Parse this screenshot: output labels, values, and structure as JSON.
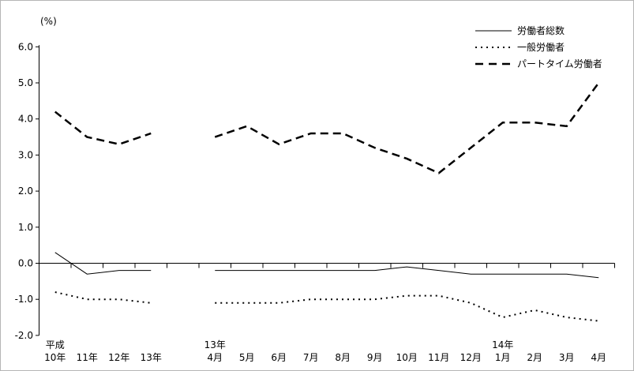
{
  "unit_label": "(%)",
  "chart_data": {
    "type": "line",
    "title": "",
    "xlabel": "",
    "ylabel": "(%)",
    "ylim": [
      -2.0,
      6.0
    ],
    "ytick_step": 1.0,
    "ytick_labels": [
      "6.0",
      "5.0",
      "4.0",
      "3.0",
      "2.0",
      "1.0",
      "0.0",
      "-1.0",
      "-2.0"
    ],
    "grid": false,
    "legend_position": "top-right",
    "line_color": "#000000",
    "categories": [
      "平成10年",
      "平成11年",
      "平成12年",
      "平成13年",
      "",
      "平成13年4月",
      "5月",
      "6月",
      "7月",
      "8月",
      "9月",
      "10月",
      "11月",
      "12月",
      "平成14年1月",
      "2月",
      "3月",
      "4月"
    ],
    "x_labels_top": [
      "平成",
      "",
      "",
      "",
      "",
      "13年",
      "",
      "",
      "",
      "",
      "",
      "",
      "",
      "",
      "14年",
      "",
      "",
      ""
    ],
    "x_labels_bottom": [
      "10年",
      "11年",
      "12年",
      "13年",
      "",
      "4月",
      "5月",
      "6月",
      "7月",
      "8月",
      "9月",
      "10月",
      "11月",
      "12月",
      "1月",
      "2月",
      "3月",
      "4月"
    ],
    "series": [
      {
        "name": "労働者総数",
        "style": "solid",
        "color": "#000000",
        "values": [
          0.3,
          -0.3,
          -0.2,
          -0.2,
          null,
          -0.2,
          -0.2,
          -0.2,
          -0.2,
          -0.2,
          -0.2,
          -0.1,
          -0.2,
          -0.3,
          -0.3,
          -0.3,
          -0.3,
          -0.4
        ]
      },
      {
        "name": "一般労働者",
        "style": "dotted",
        "color": "#000000",
        "values": [
          -0.8,
          -1.0,
          -1.0,
          -1.1,
          null,
          -1.1,
          -1.1,
          -1.1,
          -1.0,
          -1.0,
          -1.0,
          -0.9,
          -0.9,
          -1.1,
          -1.5,
          -1.3,
          -1.5,
          -1.6
        ]
      },
      {
        "name": "パートタイム労働者",
        "style": "dashed",
        "color": "#000000",
        "values": [
          4.2,
          3.5,
          3.3,
          3.6,
          null,
          3.5,
          3.8,
          3.3,
          3.6,
          3.6,
          3.2,
          2.9,
          2.5,
          3.2,
          3.9,
          3.9,
          3.8,
          5.0
        ]
      }
    ]
  }
}
